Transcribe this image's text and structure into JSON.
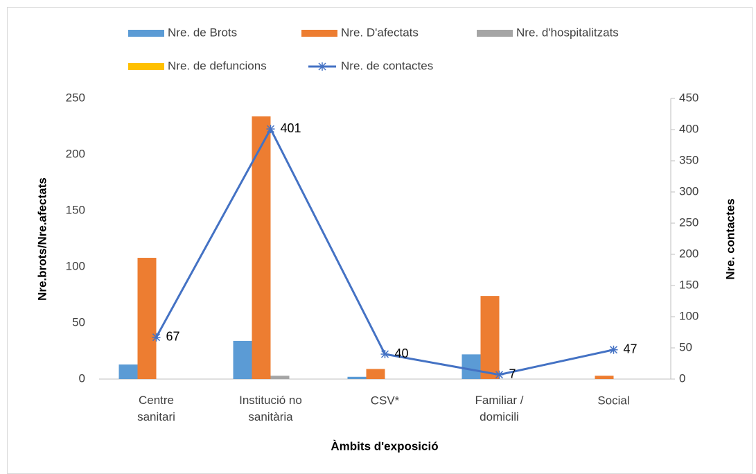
{
  "chart_data": {
    "type": "bar",
    "xlabel": "Àmbits d'exposició",
    "ylabel": "Nre.brots/Nre.afectats",
    "y2label": "Nre. contactes",
    "categories": [
      "Centre sanitari",
      "Institució no sanitària",
      "CSV*",
      "Familiar / domicili",
      "Social"
    ],
    "series": [
      {
        "name": "Nre. de Brots",
        "color": "#5b9bd5",
        "values": [
          13,
          34,
          2,
          22,
          0
        ]
      },
      {
        "name": "Nre. D'afectats",
        "color": "#ed7d31",
        "values": [
          108,
          234,
          9,
          74,
          3
        ]
      },
      {
        "name": "Nre. d'hospitalitzats",
        "color": "#a5a5a5",
        "values": [
          0,
          3,
          0,
          0,
          0
        ]
      },
      {
        "name": "Nre. de defuncions",
        "color": "#ffc000",
        "values": [
          0,
          0,
          0,
          0,
          0
        ]
      },
      {
        "name": "Nre. de contactes",
        "color": "#4472c4",
        "type": "line",
        "axis": "y2",
        "values": [
          67,
          401,
          40,
          7,
          47
        ]
      }
    ],
    "ylim": [
      0,
      250
    ],
    "yticks": [
      0,
      50,
      100,
      150,
      200,
      250
    ],
    "y2lim": [
      0,
      450
    ],
    "y2ticks": [
      0,
      50,
      100,
      150,
      200,
      250,
      300,
      350,
      400,
      450
    ],
    "legend": "top"
  }
}
